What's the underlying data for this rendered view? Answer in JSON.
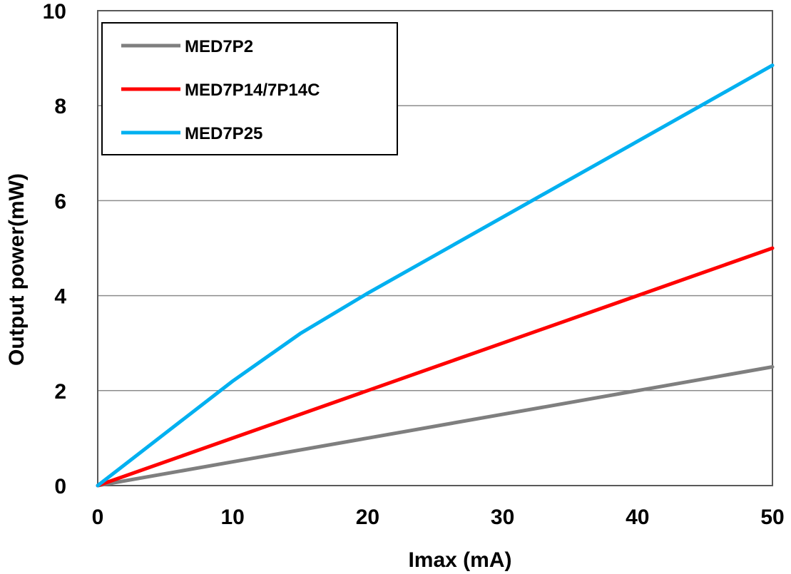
{
  "chart_data": {
    "type": "line",
    "title": "",
    "xlabel": "Imax (mA)",
    "ylabel": "Output power(mW)",
    "xlim": [
      0,
      50
    ],
    "ylim": [
      0,
      10
    ],
    "x_ticks": [
      "0",
      "10",
      "20",
      "30",
      "40",
      "50"
    ],
    "y_ticks": [
      "0",
      "2",
      "4",
      "6",
      "8",
      "10"
    ],
    "grid": "horizontal",
    "legend_position": "top-left",
    "series": [
      {
        "name": "MED7P2",
        "color": "#7f7f7f",
        "x": [
          0,
          10,
          20,
          30,
          40,
          50
        ],
        "y": [
          0,
          0.5,
          1.0,
          1.5,
          2.0,
          2.5
        ]
      },
      {
        "name": "MED7P14/7P14C",
        "color": "#ff0000",
        "x": [
          0,
          10,
          20,
          30,
          40,
          50
        ],
        "y": [
          0,
          1.0,
          2.0,
          3.0,
          4.0,
          5.0
        ]
      },
      {
        "name": "MED7P25",
        "color": "#00b0f0",
        "x": [
          0,
          5,
          10,
          15,
          20,
          25,
          30,
          35,
          40,
          45,
          50
        ],
        "y": [
          0,
          1.1,
          2.2,
          3.2,
          4.05,
          4.85,
          5.65,
          6.45,
          7.25,
          8.05,
          8.85
        ]
      }
    ]
  }
}
